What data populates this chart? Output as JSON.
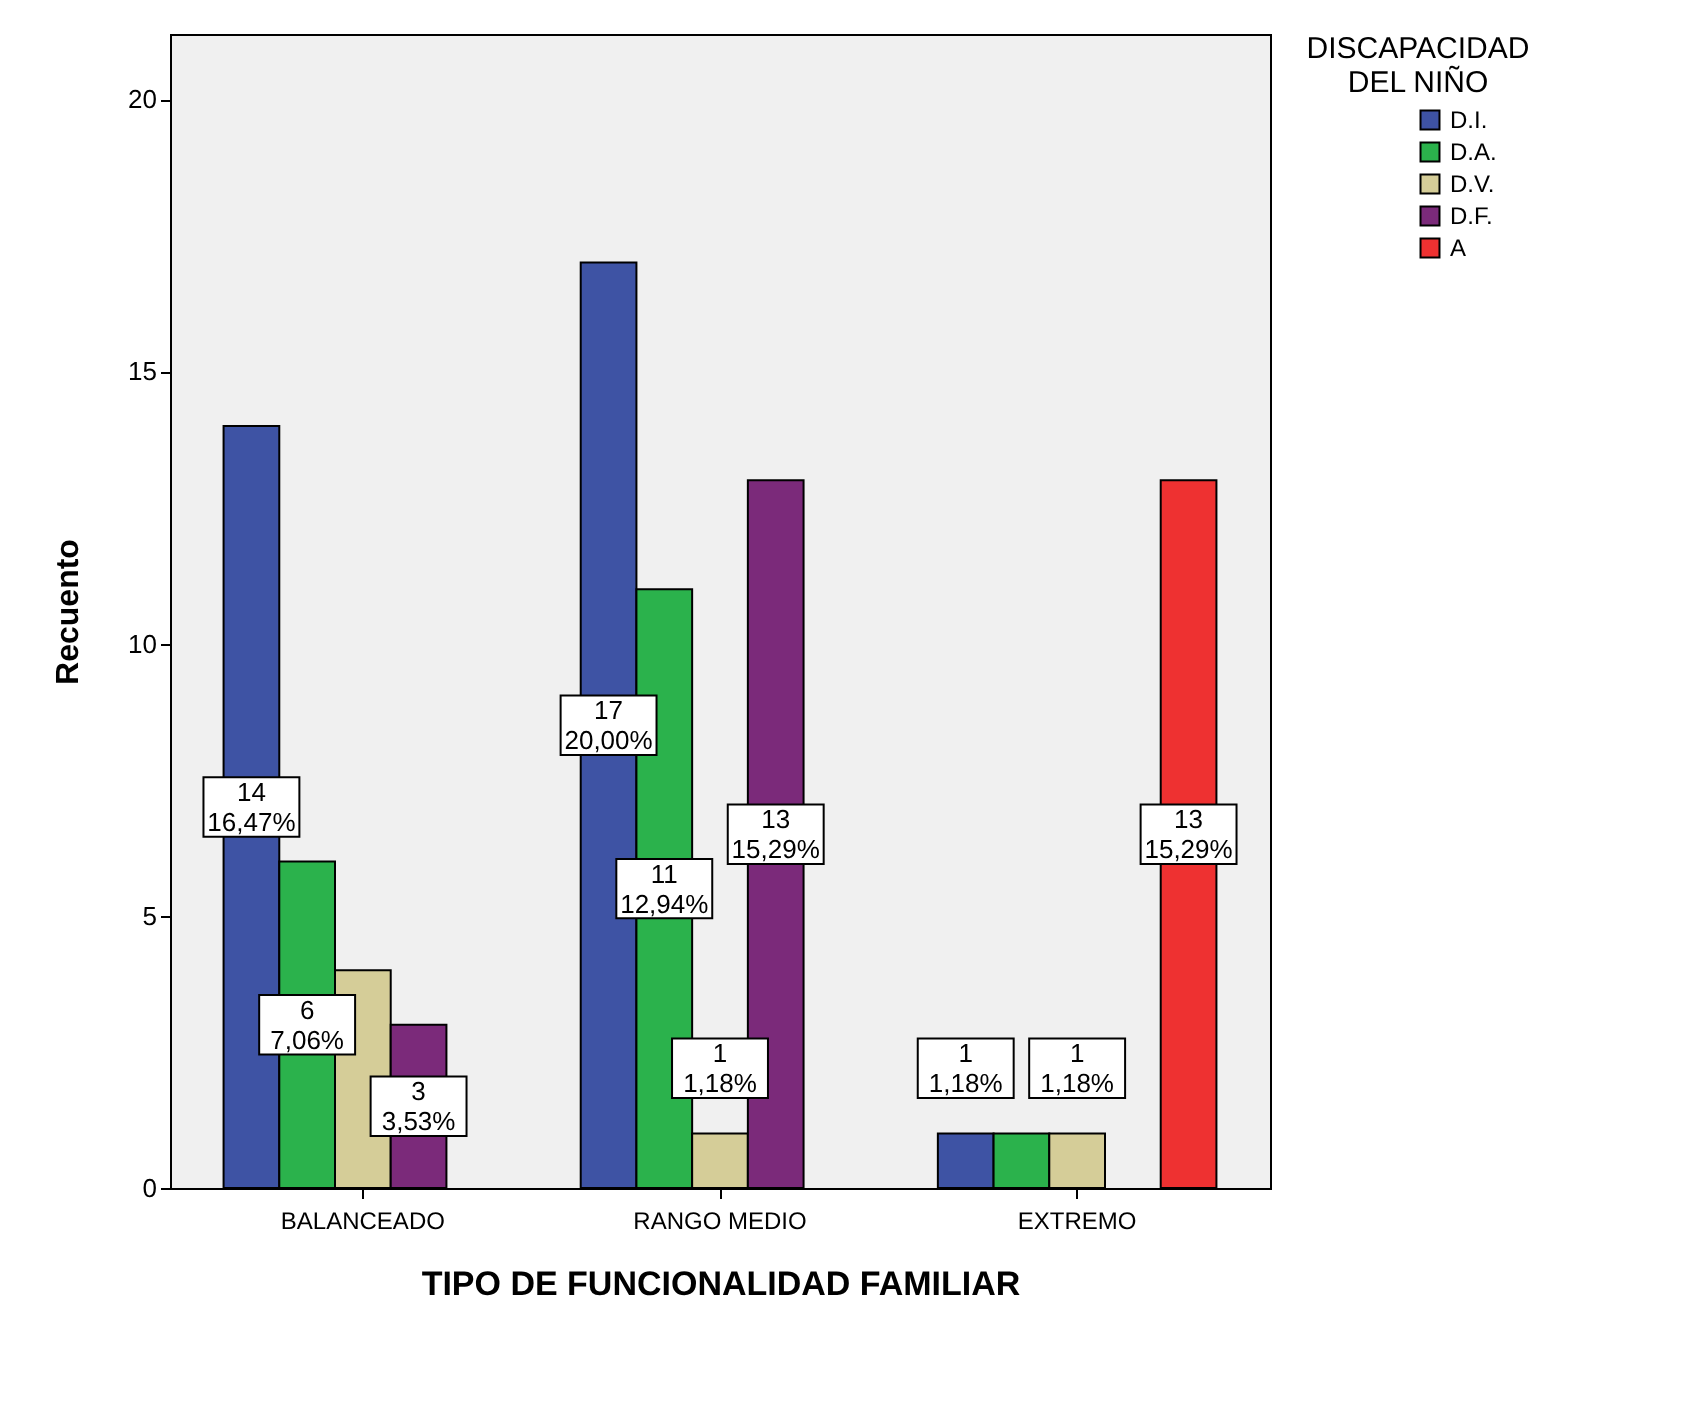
{
  "chart_data": {
    "type": "bar",
    "xlabel": "TIPO DE FUNCIONALIDAD FAMILIAR",
    "ylabel": "Recuento",
    "legend_title": "DISCAPACIDAD DEL NIÑO",
    "legend": "top right",
    "categories": [
      "BALANCEADO",
      "RANGO MEDIO",
      "EXTREMO"
    ],
    "ylim": [
      0,
      21.2
    ],
    "yticks": [
      0,
      5,
      10,
      15,
      20
    ],
    "grid": false,
    "series": [
      {
        "name": "D.I.",
        "color": "#3e53a4",
        "values": [
          14,
          17,
          1
        ],
        "value_labels": [
          "14 16,47%",
          "17 20,00%",
          "1 1,18%"
        ]
      },
      {
        "name": "D.A.",
        "color": "#2bb24c",
        "values": [
          6,
          11,
          1
        ],
        "value_labels": [
          "6 7,06%",
          "11 12,94%",
          null
        ]
      },
      {
        "name": "D.V.",
        "color": "#d5cd98",
        "values": [
          4,
          1,
          1
        ],
        "value_labels": [
          null,
          "1 1,18%",
          "1 1,18%"
        ]
      },
      {
        "name": "D.F.",
        "color": "#7b2a7a",
        "values": [
          3,
          13,
          null
        ],
        "value_labels": [
          "3 3,53%",
          "13 15,29%",
          null
        ]
      },
      {
        "name": "A",
        "color": "#ee3131",
        "values": [
          null,
          null,
          13
        ],
        "value_labels": [
          null,
          null,
          "13 15,29%"
        ]
      }
    ]
  }
}
